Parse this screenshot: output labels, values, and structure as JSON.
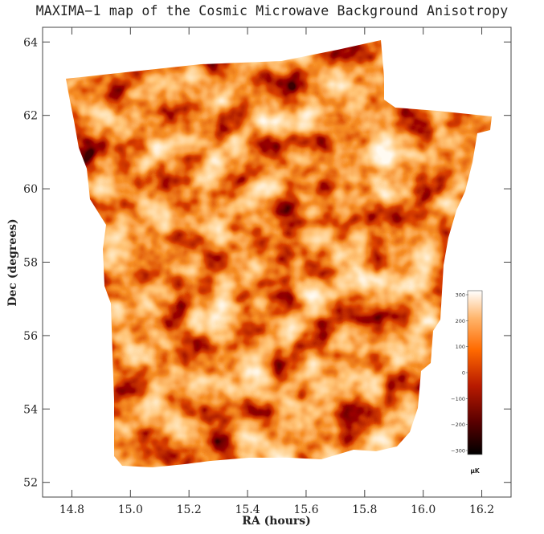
{
  "chart_data": {
    "type": "heatmap",
    "title": "MAXIMA−1 map of the Cosmic Microwave Background Anisotropy",
    "xlabel": "RA (hours)",
    "ylabel": "Dec (degrees)",
    "xlim": [
      14.7,
      16.3
    ],
    "ylim": [
      51.6,
      64.4
    ],
    "x_ticks": [
      "14.8",
      "15.0",
      "15.2",
      "15.4",
      "15.6",
      "15.8",
      "16.0",
      "16.2"
    ],
    "y_ticks": [
      "52",
      "54",
      "56",
      "58",
      "60",
      "62",
      "64"
    ],
    "colorbar": {
      "range": [
        -300,
        300
      ],
      "ticks": [
        "300",
        "200",
        "100",
        "0",
        "−100",
        "−200",
        "−300"
      ],
      "unit": "μK",
      "colors": [
        "#000000",
        "#5a0000",
        "#b81a00",
        "#ff6a00",
        "#ffb46a",
        "#ffffff"
      ]
    },
    "grid": false,
    "legend": "none"
  }
}
